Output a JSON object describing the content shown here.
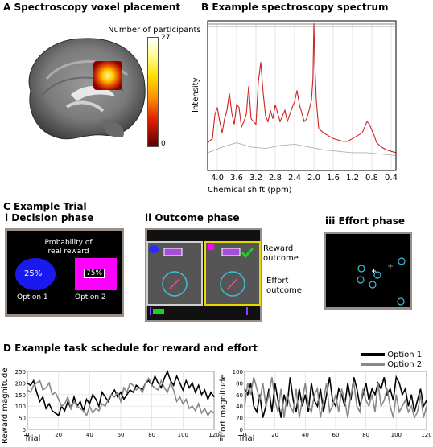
{
  "panel_a": {
    "title": "A  Spectroscopy voxel placement",
    "colorbar_label": "Number of participants",
    "colorbar_max": "27",
    "colorbar_min": "0"
  },
  "panel_b": {
    "title": "B  Example spectroscopy spectrum",
    "ylabel": "Intensity",
    "xlabel": "Chemical shift (ppm)"
  },
  "panel_c": {
    "title": "C  Example Trial",
    "i_title": "i  Decision phase",
    "ii_title": "ii  Outcome phase",
    "iii_title": "iii  Effort phase",
    "prob_label_1": "Probability of",
    "prob_label_2": "real reward",
    "option1_pct": "25%",
    "option2_pct": "75%",
    "option1_label": "Option 1",
    "option2_label": "Option 2",
    "reward_outcome_1": "Reward",
    "reward_outcome_2": "outcome",
    "effort_outcome_1": "Effort",
    "effort_outcome_2": "outcome"
  },
  "panel_d": {
    "title": "D  Example task schedule for reward and effort",
    "legend": [
      "Option 1",
      "Option 2"
    ],
    "left_ylabel": "Reward magnitude",
    "right_ylabel": "Effort magnitude",
    "xlabel": "Trial"
  },
  "chart_data": [
    {
      "type": "line",
      "title": "",
      "xlabel": "Chemical shift (ppm)",
      "ylabel": "Intensity",
      "x_ticks": [
        "4.0",
        "3.6",
        "3.2",
        "2.8",
        "2.4",
        "2.0",
        "1.6",
        "1.2",
        "0.8",
        "0.4"
      ],
      "xlim": [
        4.2,
        0.3
      ],
      "series": [
        {
          "color": "#cc2222",
          "x": [
            4.2,
            4.1,
            4.05,
            4.0,
            3.95,
            3.9,
            3.85,
            3.8,
            3.75,
            3.7,
            3.65,
            3.6,
            3.55,
            3.5,
            3.45,
            3.4,
            3.35,
            3.3,
            3.25,
            3.2,
            3.15,
            3.1,
            3.05,
            3.0,
            2.95,
            2.9,
            2.85,
            2.8,
            2.75,
            2.7,
            2.65,
            2.6,
            2.55,
            2.5,
            2.45,
            2.4,
            2.35,
            2.3,
            2.25,
            2.2,
            2.15,
            2.1,
            2.05,
            2.02,
            2.0,
            1.98,
            1.95,
            1.9,
            1.8,
            1.7,
            1.6,
            1.5,
            1.4,
            1.3,
            1.2,
            1.1,
            1.0,
            0.95,
            0.9,
            0.85,
            0.8,
            0.75,
            0.7,
            0.6,
            0.5,
            0.4,
            0.3
          ],
          "y": [
            0.15,
            0.18,
            0.35,
            0.4,
            0.3,
            0.22,
            0.32,
            0.38,
            0.5,
            0.36,
            0.28,
            0.42,
            0.4,
            0.26,
            0.3,
            0.35,
            0.55,
            0.32,
            0.3,
            0.28,
            0.58,
            0.72,
            0.5,
            0.34,
            0.3,
            0.38,
            0.32,
            0.42,
            0.36,
            0.3,
            0.34,
            0.38,
            0.3,
            0.35,
            0.4,
            0.44,
            0.52,
            0.42,
            0.36,
            0.3,
            0.32,
            0.38,
            0.45,
            0.6,
            1.0,
            0.7,
            0.45,
            0.25,
            0.22,
            0.2,
            0.18,
            0.17,
            0.16,
            0.16,
            0.18,
            0.2,
            0.22,
            0.26,
            0.3,
            0.28,
            0.24,
            0.2,
            0.15,
            0.12,
            0.1,
            0.09,
            0.08
          ]
        },
        {
          "color": "#b0b0b0",
          "x": [
            4.2,
            3.9,
            3.6,
            3.3,
            3.0,
            2.7,
            2.4,
            2.1,
            1.8,
            1.5,
            1.2,
            0.9,
            0.6,
            0.3
          ],
          "y": [
            0.08,
            0.12,
            0.15,
            0.12,
            0.11,
            0.13,
            0.14,
            0.12,
            0.1,
            0.09,
            0.08,
            0.08,
            0.07,
            0.06
          ]
        }
      ]
    },
    {
      "type": "line",
      "title": "",
      "xlabel": "Trial",
      "ylabel": "Reward magnitude",
      "ylim": [
        0,
        250
      ],
      "xlim": [
        0,
        120
      ],
      "y_ticks": [
        0,
        50,
        100,
        150,
        200,
        250
      ],
      "x_ticks": [
        0,
        20,
        40,
        60,
        80,
        100,
        120
      ],
      "series": [
        {
          "name": "Option 1",
          "color": "#000000",
          "values": [
            200,
            190,
            210,
            160,
            120,
            140,
            90,
            110,
            80,
            70,
            60,
            100,
            80,
            120,
            90,
            140,
            100,
            120,
            80,
            130,
            110,
            150,
            130,
            100,
            160,
            140,
            120,
            150,
            170,
            140,
            160,
            130,
            150,
            170,
            160,
            190,
            180,
            170,
            200,
            210,
            190,
            230,
            200,
            180,
            220,
            250,
            210,
            190,
            230,
            200,
            170,
            210,
            180,
            200,
            160,
            190,
            150,
            170,
            130,
            160,
            140
          ]
        },
        {
          "name": "Option 2",
          "color": "#888888",
          "values": [
            170,
            160,
            190,
            200,
            210,
            170,
            180,
            200,
            150,
            160,
            130,
            100,
            110,
            140,
            90,
            120,
            100,
            90,
            80,
            60,
            100,
            70,
            90,
            80,
            110,
            100,
            130,
            150,
            140,
            160,
            120,
            180,
            160,
            200,
            190,
            170,
            180,
            160,
            200,
            220,
            190,
            180,
            170,
            210,
            180,
            160,
            200,
            170,
            120,
            140,
            110,
            130,
            90,
            100,
            80,
            110,
            70,
            90,
            60,
            80,
            70
          ]
        }
      ]
    },
    {
      "type": "line",
      "title": "",
      "xlabel": "Trial",
      "ylabel": "Effort magnitude",
      "ylim": [
        0,
        100
      ],
      "xlim": [
        0,
        120
      ],
      "y_ticks": [
        0,
        20,
        40,
        60,
        80,
        100
      ],
      "x_ticks": [
        0,
        20,
        40,
        60,
        80,
        100,
        120
      ],
      "series": [
        {
          "name": "Option 1",
          "color": "#000000",
          "values": [
            70,
            60,
            80,
            40,
            30,
            60,
            20,
            40,
            70,
            30,
            80,
            50,
            20,
            60,
            40,
            90,
            50,
            30,
            70,
            40,
            60,
            30,
            80,
            50,
            40,
            70,
            30,
            60,
            90,
            50,
            40,
            70,
            60,
            40,
            80,
            50,
            90,
            70,
            40,
            60,
            80,
            50,
            70,
            60,
            80,
            70,
            90,
            60,
            70,
            50,
            90,
            80,
            60,
            70,
            40,
            60,
            30,
            50,
            70,
            40,
            50
          ]
        },
        {
          "name": "Option 2",
          "color": "#888888",
          "values": [
            40,
            80,
            60,
            90,
            70,
            50,
            80,
            40,
            60,
            90,
            50,
            30,
            70,
            20,
            60,
            40,
            30,
            70,
            20,
            50,
            80,
            40,
            30,
            60,
            70,
            20,
            50,
            80,
            30,
            40,
            60,
            30,
            70,
            50,
            20,
            60,
            80,
            40,
            30,
            70,
            50,
            40,
            60,
            30,
            80,
            40,
            50,
            70,
            40,
            20,
            60,
            30,
            40,
            50,
            30,
            40,
            20,
            30,
            60,
            20,
            40
          ]
        }
      ]
    }
  ]
}
